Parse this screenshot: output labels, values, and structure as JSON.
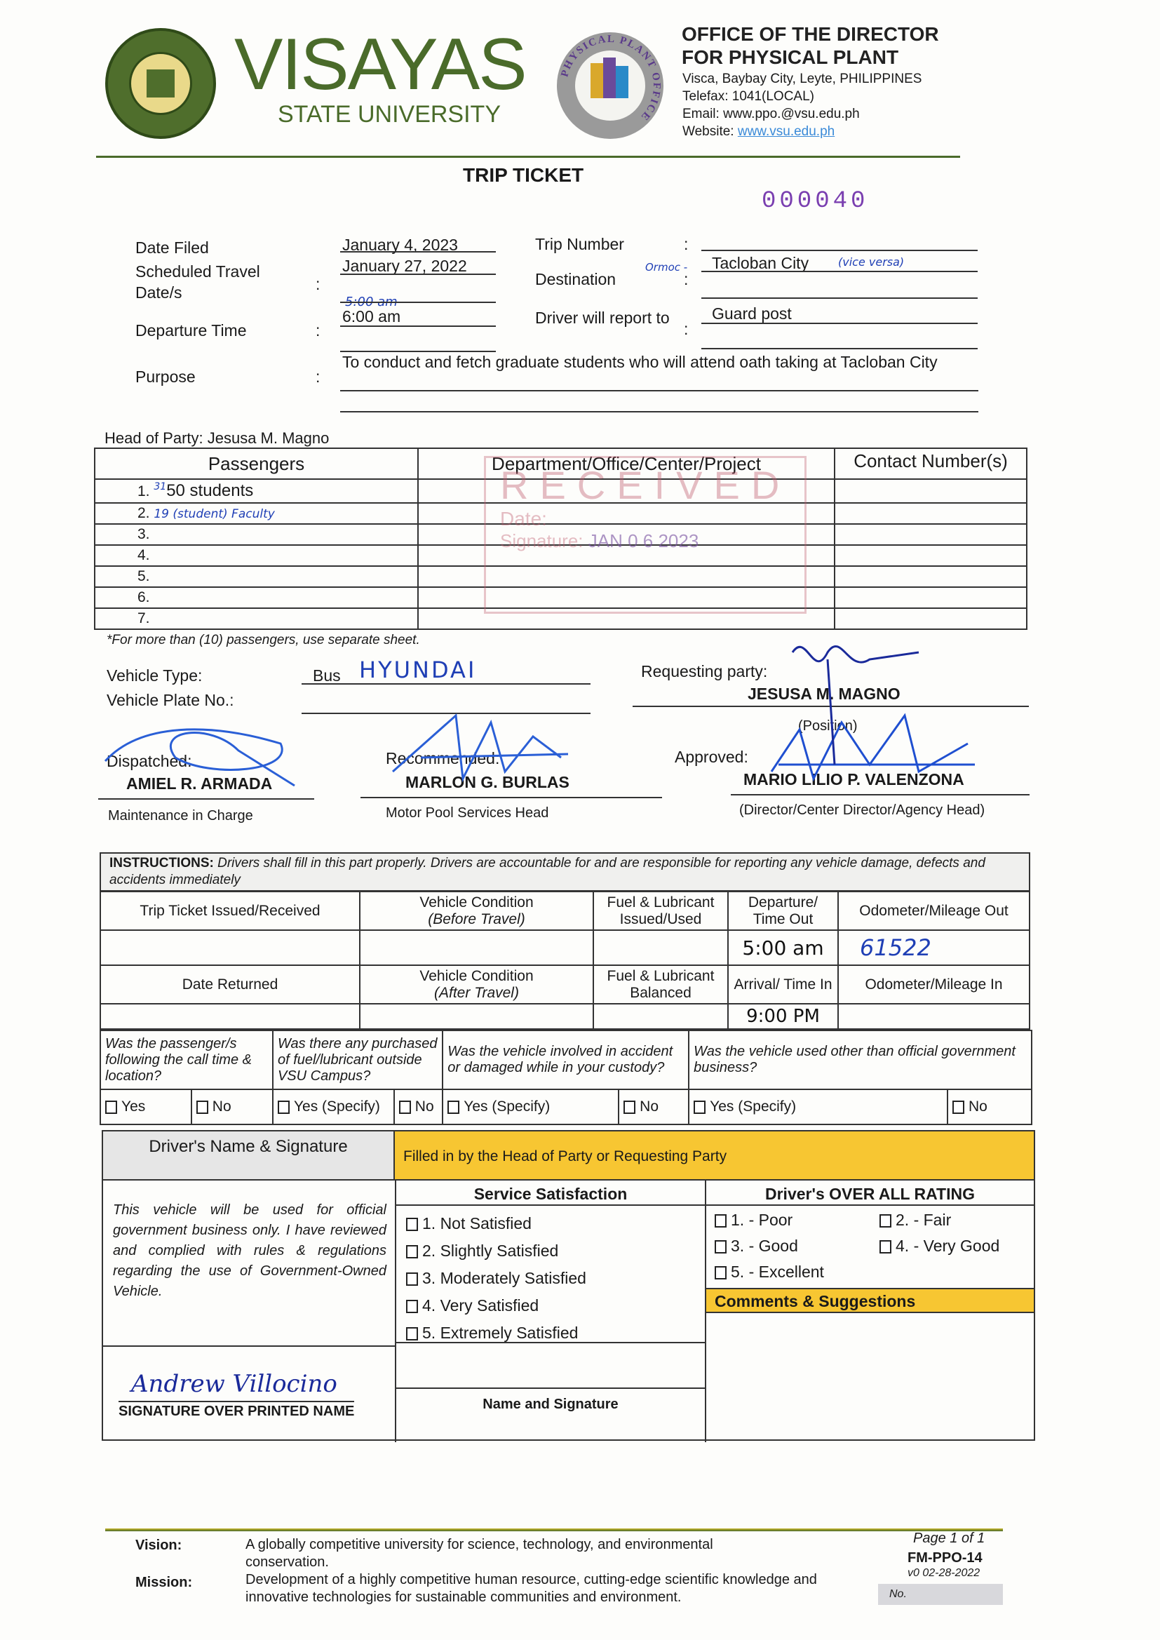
{
  "header": {
    "logo_text": "VISAYAS",
    "logo_sub": "STATE UNIVERSITY",
    "seal_text": "VISAYAS STATE UNIVERSITY",
    "gear_text": "PHYSICAL PLANT OFFICE",
    "office_line1": "OFFICE OF THE DIRECTOR",
    "office_line2": "FOR PHYSICAL PLANT",
    "address": "Visca, Baybay City, Leyte, PHILIPPINES",
    "telefax": "Telefax: 1041(LOCAL)",
    "email": "Email: www.ppo.@vsu.edu.ph",
    "website_label": "Website:",
    "website": "www.vsu.edu.ph"
  },
  "title": "TRIP TICKET",
  "ticket_no": "000040",
  "fields": {
    "date_filed_label": "Date Filed",
    "date_filed": "January 4, 2023",
    "sched_label": "Scheduled Travel Date/s",
    "sched": "January 27, 2022",
    "dep_label": "Departure Time",
    "dep_handwritten": "5:00 am",
    "dep": "6:00 am",
    "purpose_label": "Purpose",
    "purpose": "To conduct and fetch graduate students who will attend oath taking at Tacloban City",
    "trip_label": "Trip Number",
    "dest_label": "Destination",
    "dest_prefix": "Ormoc -",
    "dest": "Tacloban City",
    "dest_note": "(vice versa)",
    "report_label": "Driver will report to",
    "report": "Guard post",
    "colon": ":"
  },
  "head_of_party": "Head of Party: Jesusa M. Magno",
  "passengers": {
    "headers": [
      "Passengers",
      "Department/Office/Center/Project",
      "Contact Number(s)"
    ],
    "rows": [
      {
        "n": "1.",
        "handwritten": "31",
        "text": "50 students"
      },
      {
        "n": "2.",
        "handwritten": "19 (student) Faculty",
        "text": ""
      },
      {
        "n": "3.",
        "text": ""
      },
      {
        "n": "4.",
        "text": ""
      },
      {
        "n": "5.",
        "text": ""
      },
      {
        "n": "6.",
        "text": ""
      },
      {
        "n": "7.",
        "text": ""
      }
    ],
    "note": "*For more than (10) passengers, use separate sheet."
  },
  "stamp": {
    "text": "RECEIVED",
    "date_label": "Date:",
    "date": "JAN 0 6 2023",
    "sig_label": "Signature:"
  },
  "vehicle": {
    "type_label": "Vehicle Type:",
    "type": "Bus",
    "type_hw": "HYUNDAI",
    "plate_label": "Vehicle Plate No.:"
  },
  "signatories": {
    "requesting_label": "Requesting party:",
    "requesting_name": "JESUSA M. MAGNO",
    "position": "(Position)",
    "dispatched_label": "Dispatched:",
    "dispatched_name": "AMIEL R. ARMADA",
    "dispatched_role": "Maintenance in Charge",
    "recommended_label": "Recommended:",
    "recommended_name": "MARLON G. BURLAS",
    "recommended_role": "Motor Pool Services Head",
    "approved_label": "Approved:",
    "approved_name": "MARIO LILIO P. VALENZONA",
    "approved_role": "(Director/Center Director/Agency Head)"
  },
  "instructions": {
    "bold": "INSTRUCTIONS:",
    "text": " Drivers shall fill in this part properly.  Drivers are accountable for and are responsible for reporting any vehicle damage, defects and accidents immediately",
    "h1": [
      "Trip Ticket Issued/Received",
      "Vehicle Condition",
      "(Before Travel)",
      "Fuel & Lubricant Issued/Used",
      "Departure/ Time Out",
      "Odometer/Mileage Out"
    ],
    "v1": {
      "time_out": "5:00 am",
      "odometer_out": "61522"
    },
    "h2": [
      "Date Returned",
      "Vehicle Condition",
      "(After Travel)",
      "Fuel & Lubricant Balanced",
      "Arrival/ Time In",
      "Odometer/Mileage In"
    ],
    "v2": {
      "time_in": "9:00 PM"
    }
  },
  "questions": {
    "q": [
      "Was the passenger/s following the call time & location?",
      "Was there any purchased of fuel/lubricant outside VSU Campus?",
      "Was the vehicle involved in accident or damaged while in your custody?",
      "Was the vehicle used other than official government business?"
    ],
    "yes": "Yes",
    "no": "No",
    "yes_specify": "Yes (Specify)"
  },
  "driver": {
    "header": "Driver's Name & Signature",
    "statement": "This vehicle will be used for official government business only.  I have reviewed and complied with rules & regulations regarding the use of Government-Owned Vehicle.",
    "signature_name": "Andrew Villocino",
    "sig_label": "SIGNATURE OVER PRINTED NAME"
  },
  "feedback": {
    "header": "Filled in by the Head of Party or Requesting Party",
    "service_title": "Service Satisfaction",
    "service": [
      "1.  Not Satisfied",
      "2.  Slightly Satisfied",
      "3.  Moderately Satisfied",
      "4.  Very Satisfied",
      "5.  Extremely Satisfied"
    ],
    "name_sig": "Name and Signature",
    "rating_title": "Driver's OVER ALL RATING",
    "ratings": [
      "1. - Poor",
      "2. - Fair",
      "3. - Good",
      "4. - Very Good",
      "5. - Excellent"
    ],
    "comments": "Comments & Suggestions"
  },
  "footer": {
    "vision_label": "Vision:",
    "vision": "A globally competitive university for science, technology, and environmental conservation.",
    "mission_label": "Mission:",
    "mission": "Development of a highly competitive human resource, cutting-edge scientific knowledge and innovative technologies for sustainable communities and environment.",
    "page": "Page 1 of 1",
    "form": "FM-PPO-14",
    "version": "v0 02-28-2022",
    "no": "No."
  },
  "colors": {
    "green": "#4a6b2a",
    "yellow": "#f7c632",
    "purple": "#7a3fb0",
    "ink": "#1f3fb5"
  }
}
